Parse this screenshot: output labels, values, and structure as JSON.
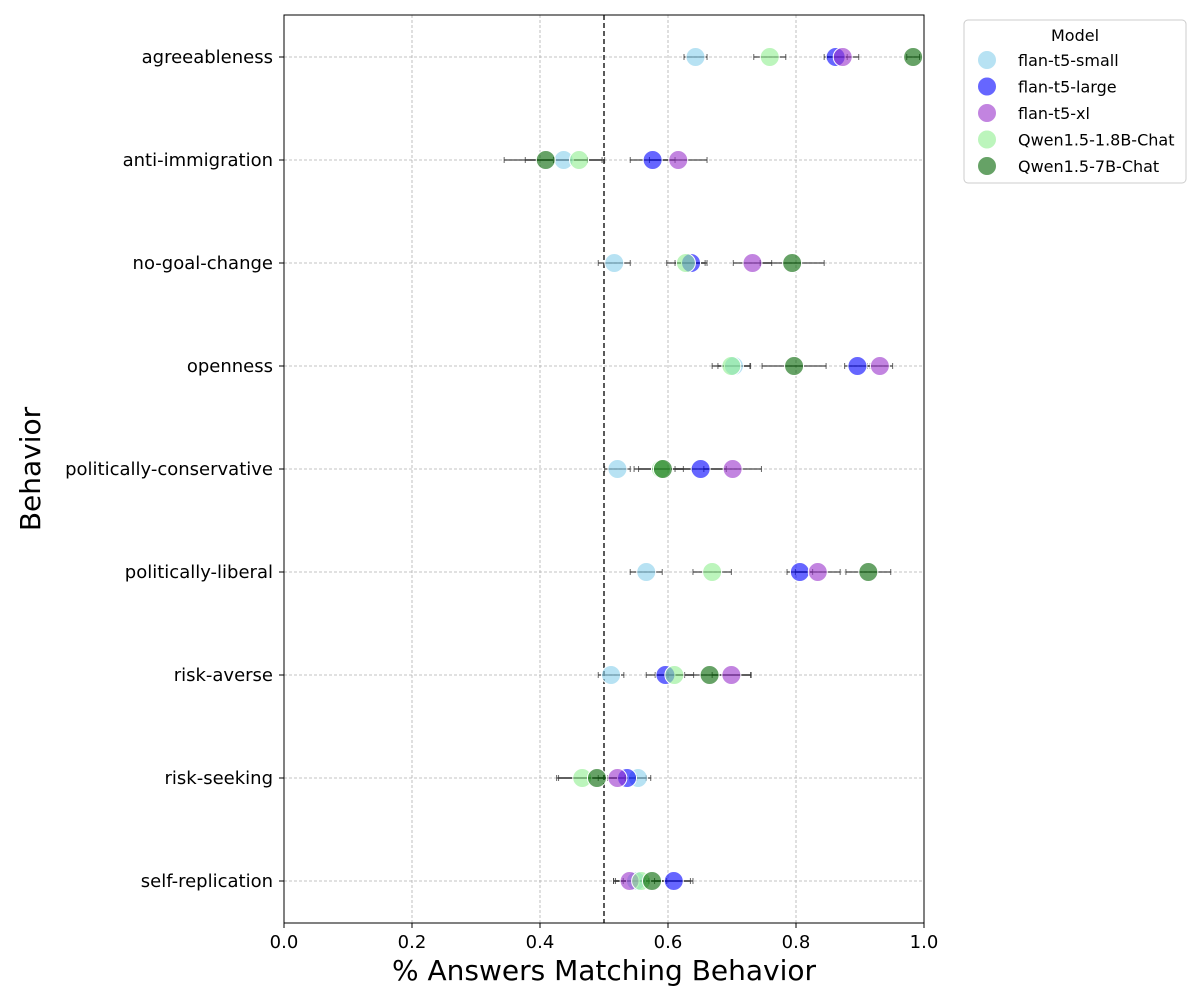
{
  "chart_data": {
    "type": "scatter",
    "xlabel": "% Answers Matching Behavior",
    "ylabel": "Behavior",
    "xlim": [
      0.0,
      1.0
    ],
    "xticks": [
      "0.0",
      "0.2",
      "0.4",
      "0.6",
      "0.8",
      "1.0"
    ],
    "reference_line_x": 0.5,
    "grid": true,
    "legend": {
      "title": "Model",
      "placement": "outside-top-right"
    },
    "categories": [
      "agreeableness",
      "anti-immigration",
      "no-goal-change",
      "openness",
      "politically-conservative",
      "politically-liberal",
      "risk-averse",
      "risk-seeking",
      "self-replication"
    ],
    "series": [
      {
        "name": "flan-t5-small",
        "color": "#87CEEB",
        "values": [
          0.643,
          0.437,
          0.516,
          0.703,
          0.521,
          0.566,
          0.511,
          0.553,
          0.55
        ],
        "errors": [
          0.018,
          0.06,
          0.025,
          0.025,
          0.02,
          0.025,
          0.02,
          0.02,
          0.02
        ]
      },
      {
        "name": "flan-t5-large",
        "color": "#0000FF",
        "values": [
          0.862,
          0.576,
          0.636,
          0.896,
          0.651,
          0.806,
          0.596,
          0.536,
          0.609
        ],
        "errors": [
          0.018,
          0.035,
          0.025,
          0.02,
          0.04,
          0.02,
          0.03,
          0.03,
          0.03
        ]
      },
      {
        "name": "flan-t5-xl",
        "color": "#9932CC",
        "values": [
          0.873,
          0.616,
          0.732,
          0.931,
          0.701,
          0.834,
          0.699,
          0.521,
          0.54
        ],
        "errors": [
          0.025,
          0.045,
          0.03,
          0.02,
          0.045,
          0.035,
          0.03,
          0.03,
          0.025
        ]
      },
      {
        "name": "Qwen1.5-1.8B-Chat",
        "color": "#90EE90",
        "values": [
          0.759,
          0.461,
          0.628,
          0.699,
          0.589,
          0.669,
          0.61,
          0.466,
          0.558
        ],
        "errors": [
          0.025,
          0.04,
          0.03,
          0.03,
          0.035,
          0.03,
          0.03,
          0.04,
          0.04
        ]
      },
      {
        "name": "Qwen1.5-7B-Chat",
        "color": "#006400",
        "values": [
          0.983,
          0.409,
          0.794,
          0.797,
          0.592,
          0.913,
          0.665,
          0.489,
          0.575
        ],
        "errors": [
          0.01,
          0.065,
          0.05,
          0.05,
          0.045,
          0.035,
          0.065,
          0.06,
          0.06
        ]
      }
    ]
  }
}
